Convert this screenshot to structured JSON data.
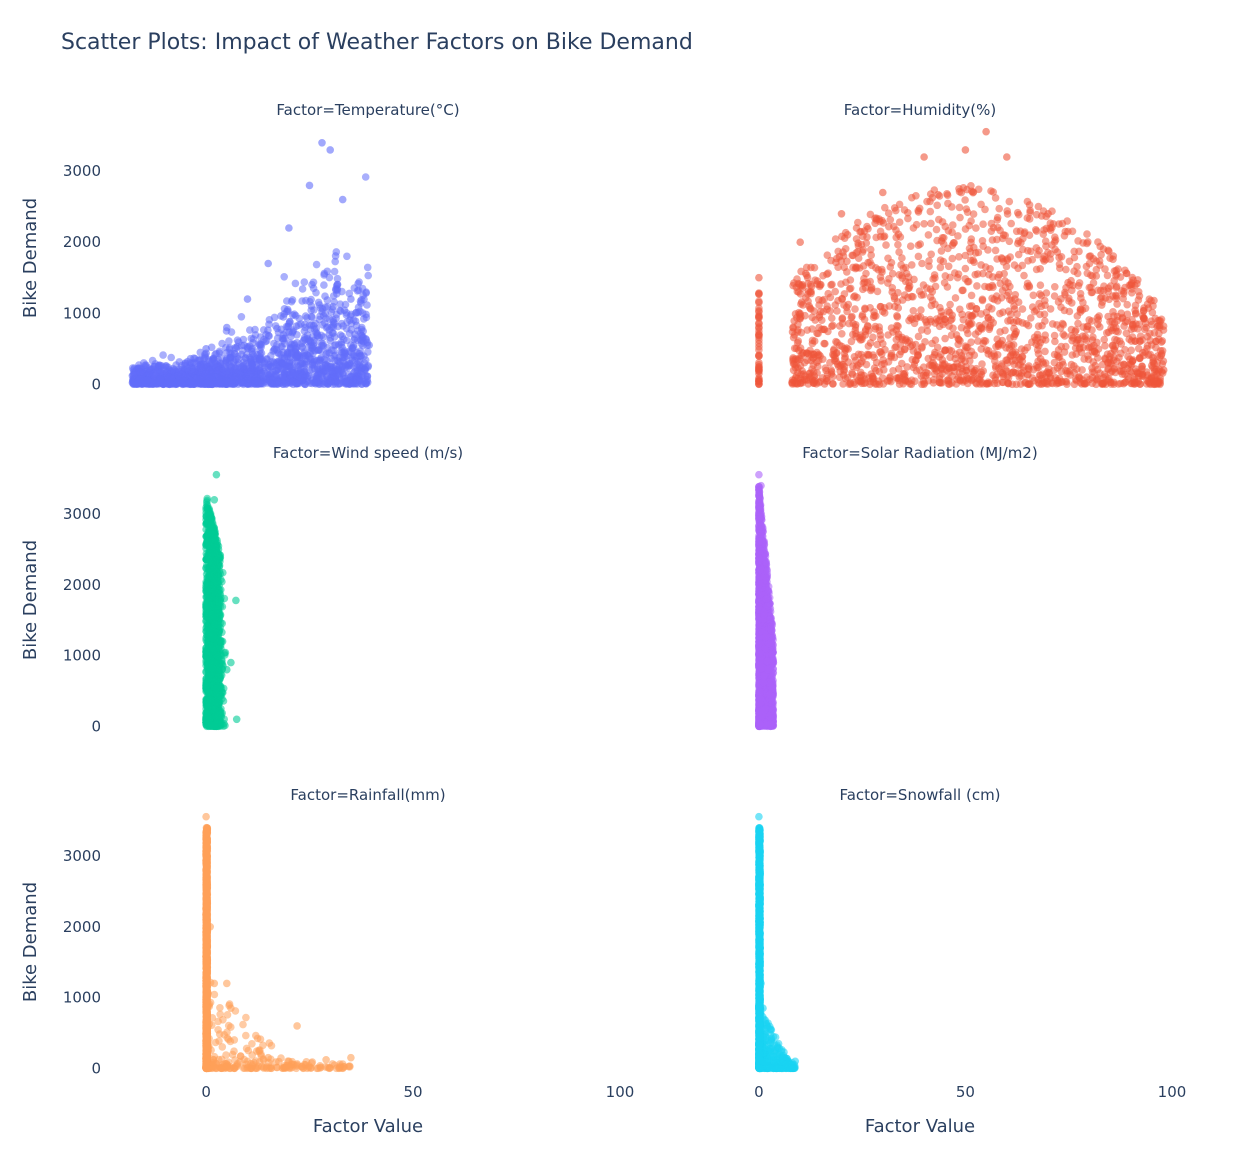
{
  "chart_data": {
    "type": "scatter",
    "title": "Scatter Plots: Impact of Weather Factors on Bike Demand",
    "xlabel": "Factor Value",
    "ylabel": "Bike Demand",
    "xlim": [
      -22,
      100
    ],
    "ylim": [
      -80,
      3650
    ],
    "x_ticks": [
      0,
      50,
      100
    ],
    "y_ticks": [
      0,
      1000,
      2000,
      3000
    ],
    "grid": false,
    "legend": "none",
    "facets": [
      {
        "label": "Factor=Temperature(°C)",
        "color": "#636efa",
        "x_range": [
          -17.8,
          39.4
        ],
        "y_max": 3556,
        "sample_points": [
          [
            -17.8,
            120
          ],
          [
            -10,
            200
          ],
          [
            -5,
            300
          ],
          [
            0,
            500
          ],
          [
            5,
            800
          ],
          [
            10,
            1200
          ],
          [
            15,
            1700
          ],
          [
            20,
            2200
          ],
          [
            25,
            2800
          ],
          [
            28,
            3400
          ],
          [
            30,
            3300
          ],
          [
            33,
            2600
          ],
          [
            35,
            1200
          ],
          [
            38,
            600
          ],
          [
            39.4,
            550
          ]
        ]
      },
      {
        "label": "Factor=Humidity(%)",
        "color": "#ef553b",
        "x_range": [
          0,
          98
        ],
        "y_max": 3556,
        "sample_points": [
          [
            0,
            1500
          ],
          [
            0,
            1150
          ],
          [
            0,
            400
          ],
          [
            0,
            150
          ],
          [
            10,
            2000
          ],
          [
            20,
            2400
          ],
          [
            30,
            2700
          ],
          [
            40,
            3200
          ],
          [
            50,
            3300
          ],
          [
            55,
            3556
          ],
          [
            60,
            3200
          ],
          [
            70,
            2400
          ],
          [
            80,
            1800
          ],
          [
            90,
            1400
          ],
          [
            98,
            200
          ]
        ]
      },
      {
        "label": "Factor=Wind speed (m/s)",
        "color": "#00cc96",
        "x_range": [
          0,
          7.4
        ],
        "y_max": 3556,
        "sample_points": [
          [
            0,
            50
          ],
          [
            1,
            1500
          ],
          [
            2,
            3200
          ],
          [
            2.5,
            3556
          ],
          [
            3,
            2500
          ],
          [
            4,
            1200
          ],
          [
            5,
            800
          ],
          [
            6,
            900
          ],
          [
            7.2,
            1780
          ],
          [
            7.4,
            100
          ]
        ]
      },
      {
        "label": "Factor=Solar Radiation (MJ/m2)",
        "color": "#ab63fa",
        "x_range": [
          0,
          3.52
        ],
        "y_max": 3556,
        "sample_points": [
          [
            0,
            3556
          ],
          [
            0.5,
            3400
          ],
          [
            1,
            2500
          ],
          [
            1.5,
            2000
          ],
          [
            2,
            1600
          ],
          [
            2.5,
            1300
          ],
          [
            3,
            1000
          ],
          [
            3.52,
            900
          ]
        ]
      },
      {
        "label": "Factor=Rainfall(mm)",
        "color": "#ffa15a",
        "x_range": [
          0,
          35
        ],
        "y_max": 3556,
        "sample_points": [
          [
            0,
            3556
          ],
          [
            0,
            3000
          ],
          [
            1,
            2000
          ],
          [
            2,
            1200
          ],
          [
            5,
            1200
          ],
          [
            6,
            850
          ],
          [
            10,
            100
          ],
          [
            15,
            150
          ],
          [
            20,
            100
          ],
          [
            22,
            600
          ],
          [
            24,
            50
          ],
          [
            29,
            120
          ],
          [
            35,
            150
          ]
        ]
      },
      {
        "label": "Factor=Snowfall (cm)",
        "color": "#19d3f3",
        "x_range": [
          0,
          8.8
        ],
        "y_max": 3556,
        "sample_points": [
          [
            0,
            3556
          ],
          [
            0,
            2800
          ],
          [
            0.5,
            1200
          ],
          [
            1,
            850
          ],
          [
            2,
            600
          ],
          [
            3,
            400
          ],
          [
            4,
            250
          ],
          [
            5,
            200
          ],
          [
            6,
            150
          ],
          [
            7,
            100
          ],
          [
            8.8,
            100
          ]
        ]
      }
    ]
  }
}
